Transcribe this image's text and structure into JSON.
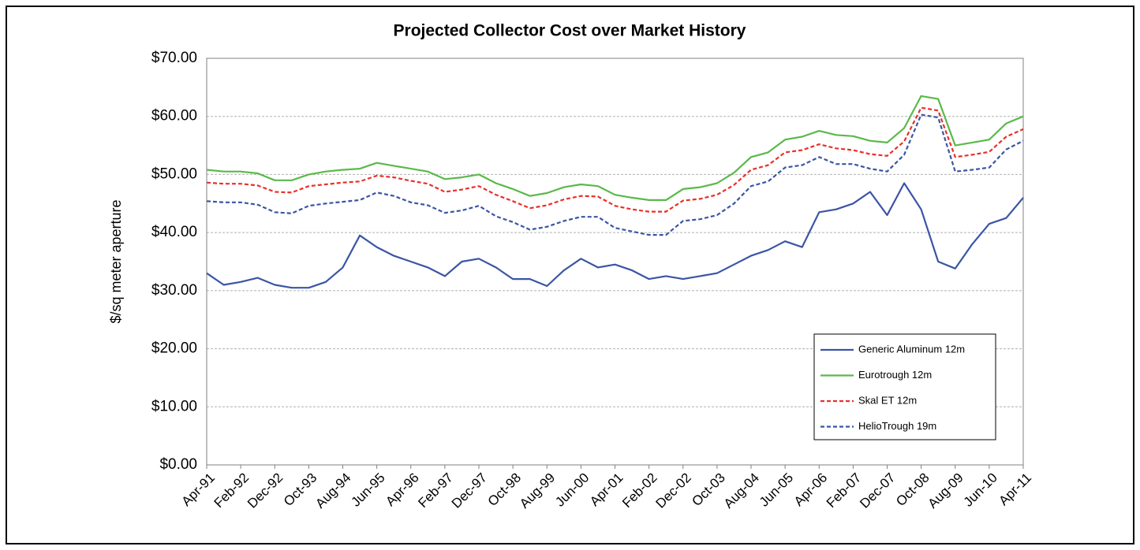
{
  "chart_data": {
    "type": "line",
    "title": "Projected Collector Cost  over Market History",
    "y_label": "$/sq meter aperture",
    "categories": [
      "Apr-91",
      null,
      "Feb-92",
      null,
      "Dec-92",
      null,
      "Oct-93",
      null,
      "Aug-94",
      null,
      "Jun-95",
      null,
      "Apr-96",
      null,
      "Feb-97",
      null,
      "Dec-97",
      null,
      "Oct-98",
      null,
      "Aug-99",
      null,
      "Jun-00",
      null,
      "Apr-01",
      null,
      "Feb-02",
      null,
      "Dec-02",
      null,
      "Oct-03",
      null,
      "Aug-04",
      null,
      "Jun-05",
      null,
      "Apr-06",
      null,
      "Feb-07",
      null,
      "Dec-07",
      null,
      "Oct-08",
      null,
      "Aug-09",
      null,
      "Jun-10",
      null,
      "Apr-11"
    ],
    "series": [
      {
        "name": "Generic Aluminum 12m",
        "color": "#3a55a4",
        "dashed": false,
        "values": [
          33.0,
          31.0,
          31.5,
          32.2,
          31.0,
          30.5,
          30.5,
          31.5,
          34.0,
          39.5,
          37.5,
          36.0,
          35.0,
          34.0,
          32.5,
          35.0,
          35.5,
          34.0,
          32.0,
          32.0,
          30.8,
          33.5,
          35.5,
          34.0,
          34.5,
          33.5,
          32.0,
          32.5,
          32.0,
          32.5,
          33.0,
          34.5,
          36.0,
          37.0,
          38.5,
          37.5,
          43.5,
          44.0,
          45.0,
          47.0,
          43.0,
          48.5,
          44.0,
          35.0,
          33.8,
          38.0,
          41.5,
          42.5,
          46.0
        ]
      },
      {
        "name": "Eurotrough 12m",
        "color": "#5ab94a",
        "dashed": false,
        "values": [
          50.8,
          50.5,
          50.5,
          50.2,
          49.0,
          49.0,
          50.0,
          50.5,
          50.8,
          51.0,
          52.0,
          51.5,
          51.0,
          50.5,
          49.2,
          49.5,
          50.0,
          48.5,
          47.5,
          46.3,
          46.8,
          47.8,
          48.3,
          48.0,
          46.5,
          46.0,
          45.6,
          45.6,
          47.5,
          47.8,
          48.5,
          50.3,
          53.0,
          53.8,
          56.0,
          56.5,
          57.5,
          56.8,
          56.6,
          55.8,
          55.5,
          58.0,
          63.5,
          63.0,
          55.0,
          55.5,
          56.0,
          58.8,
          60.0
        ]
      },
      {
        "name": "Skal ET 12m",
        "color": "#e8302a",
        "dashed": true,
        "values": [
          48.6,
          48.4,
          48.4,
          48.1,
          47.0,
          46.9,
          48.0,
          48.3,
          48.6,
          48.8,
          49.8,
          49.5,
          48.9,
          48.4,
          47.0,
          47.4,
          48.0,
          46.5,
          45.4,
          44.2,
          44.7,
          45.7,
          46.3,
          46.2,
          44.6,
          44.0,
          43.6,
          43.6,
          45.5,
          45.8,
          46.5,
          48.2,
          50.8,
          51.6,
          53.8,
          54.2,
          55.2,
          54.5,
          54.2,
          53.5,
          53.2,
          55.7,
          61.5,
          61.0,
          53.0,
          53.4,
          53.9,
          56.5,
          57.8
        ]
      },
      {
        "name": "HelioTrough 19m",
        "color": "#3a55a4",
        "dashed": true,
        "values": [
          45.4,
          45.2,
          45.2,
          44.8,
          43.5,
          43.3,
          44.6,
          45.0,
          45.3,
          45.6,
          46.9,
          46.3,
          45.2,
          44.7,
          43.4,
          43.8,
          44.6,
          42.8,
          41.8,
          40.5,
          41.0,
          42.0,
          42.7,
          42.7,
          40.8,
          40.2,
          39.6,
          39.6,
          42.0,
          42.3,
          43.0,
          45.0,
          48.0,
          48.8,
          51.2,
          51.6,
          53.0,
          51.8,
          51.8,
          51.0,
          50.5,
          53.4,
          60.3,
          59.8,
          50.5,
          50.8,
          51.2,
          54.3,
          55.8
        ]
      }
    ],
    "ylim": [
      0,
      70
    ],
    "yticks": [
      {
        "value": 0,
        "label": "$0.00"
      },
      {
        "value": 10,
        "label": "$10.00"
      },
      {
        "value": 20,
        "label": "$20.00"
      },
      {
        "value": 30,
        "label": "$30.00"
      },
      {
        "value": 40,
        "label": "$40.00"
      },
      {
        "value": 50,
        "label": "$50.00"
      },
      {
        "value": 60,
        "label": "$60.00"
      },
      {
        "value": 70,
        "label": "$70.00"
      }
    ],
    "grid": true,
    "legend": "lower-right"
  }
}
